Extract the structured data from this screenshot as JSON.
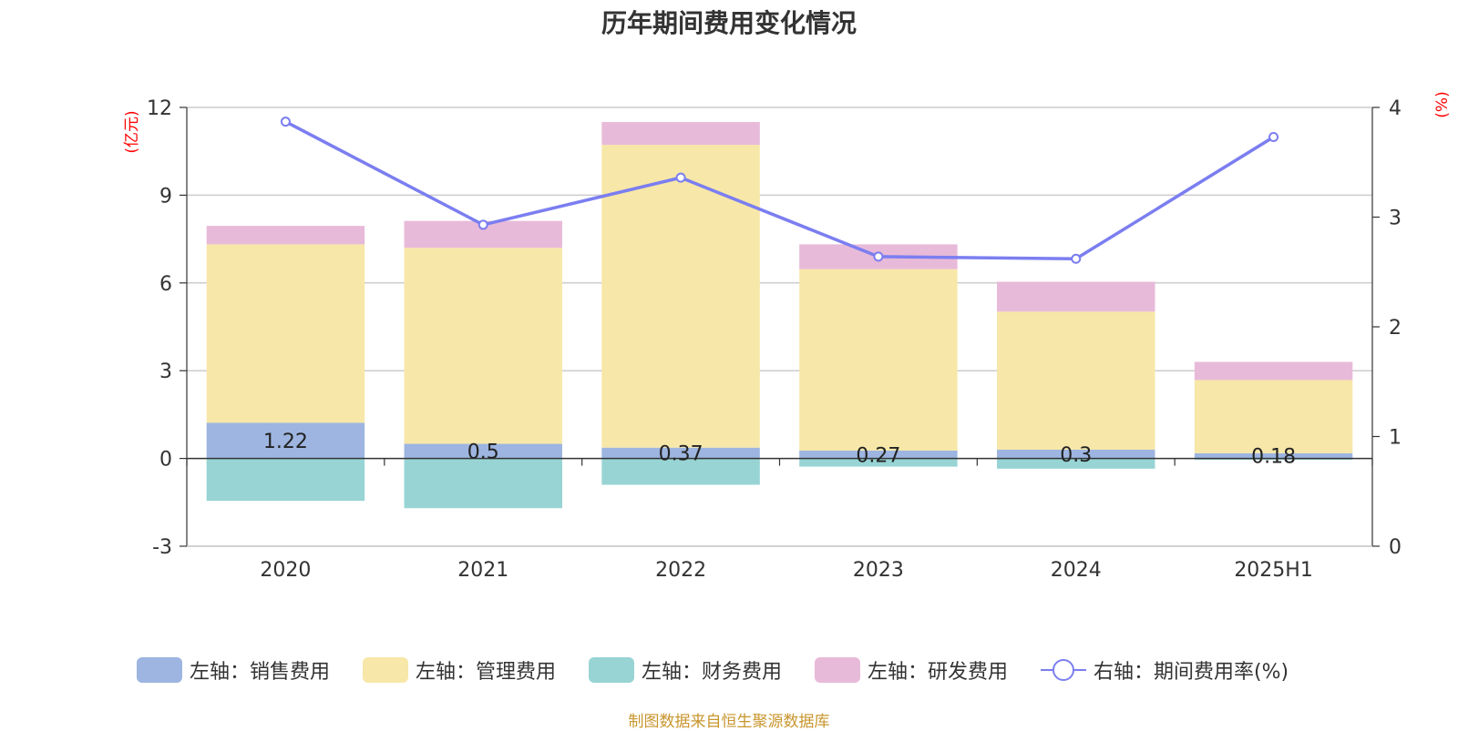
{
  "title": "历年期间费用变化情况",
  "footer": "制图数据来自恒生聚源数据库",
  "chart_data": {
    "type": "bar",
    "stacked": true,
    "categories": [
      "2020",
      "2021",
      "2022",
      "2023",
      "2024",
      "2025H1"
    ],
    "left_axis": {
      "unit_label": "(亿元)",
      "ticks": [
        -3,
        0,
        3,
        6,
        9,
        12
      ],
      "range": [
        -3,
        12
      ]
    },
    "right_axis": {
      "unit_label": "(%)",
      "ticks": [
        0,
        1,
        2,
        3,
        4
      ],
      "range": [
        0,
        4
      ]
    },
    "grid": true,
    "legend_position": "bottom",
    "series": [
      {
        "name": "左轴：销售费用",
        "axis": "left",
        "color": "#9db5e0",
        "values": [
          1.22,
          0.5,
          0.37,
          0.27,
          0.3,
          0.18
        ],
        "labels": [
          "1.22",
          "0.5",
          "0.37",
          "0.27",
          "0.3",
          "0.18"
        ]
      },
      {
        "name": "左轴：管理费用",
        "axis": "left",
        "color": "#f7e7a8",
        "values": [
          6.1,
          6.7,
          10.35,
          6.2,
          4.72,
          2.5
        ]
      },
      {
        "name": "左轴：财务费用",
        "axis": "left",
        "color": "#98d4d4",
        "values": [
          -1.45,
          -1.7,
          -0.9,
          -0.28,
          -0.35,
          -0.05
        ]
      },
      {
        "name": "左轴：研发费用",
        "axis": "left",
        "color": "#e8bad9",
        "values": [
          0.63,
          0.92,
          0.78,
          0.85,
          1.02,
          0.62
        ]
      },
      {
        "name": "右轴：期间费用率(%)",
        "axis": "right",
        "type": "line",
        "color": "#7b7ef0",
        "values": [
          3.87,
          2.93,
          3.36,
          2.64,
          2.62,
          3.73
        ]
      }
    ]
  }
}
